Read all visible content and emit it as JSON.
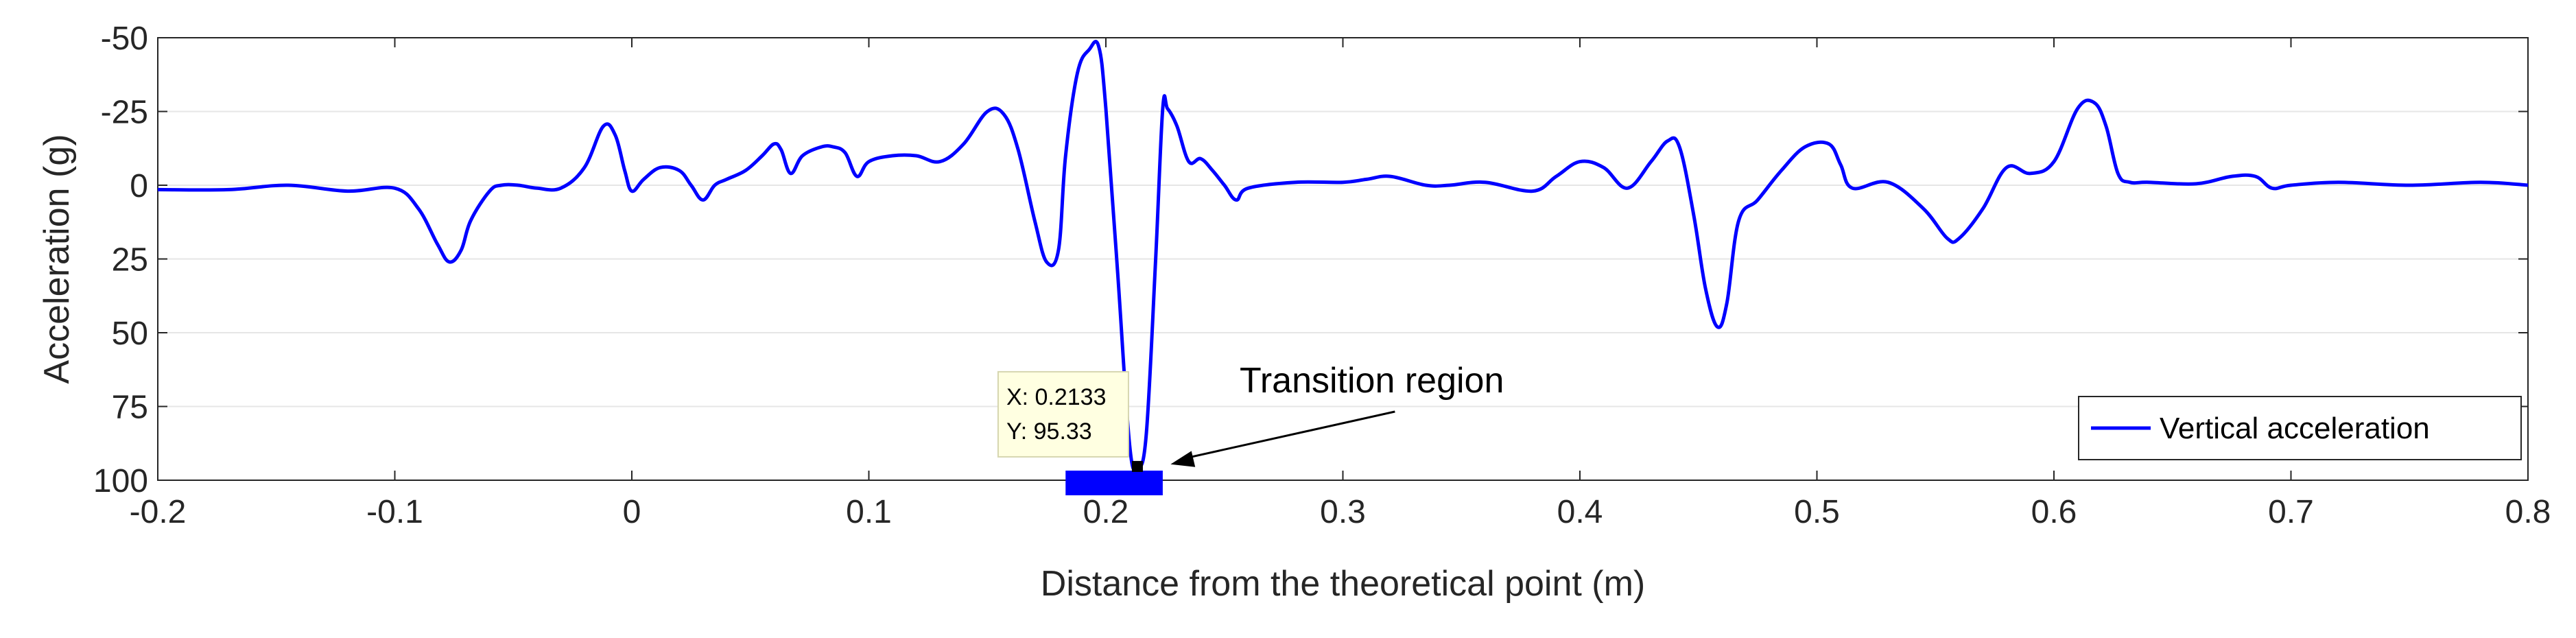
{
  "chart_data": {
    "type": "line",
    "xlabel": "Distance from the theoretical point (m)",
    "ylabel": "Acceleration (g)",
    "xlim": [
      -0.2,
      0.8
    ],
    "ylim": [
      -50,
      100
    ],
    "y_axis_reversed": true,
    "x_ticks": [
      -0.2,
      -0.1,
      0,
      0.1,
      0.2,
      0.3,
      0.4,
      0.5,
      0.6,
      0.7,
      0.8
    ],
    "x_tick_labels": [
      "-0.2",
      "-0.1",
      "0",
      "0.1",
      "0.2",
      "0.3",
      "0.4",
      "0.5",
      "0.6",
      "0.7",
      "0.8"
    ],
    "y_ticks": [
      -50,
      -25,
      0,
      25,
      50,
      75,
      100
    ],
    "y_tick_labels": [
      "-50",
      "-25",
      "0",
      "25",
      "50",
      "75",
      "100"
    ],
    "grid": "horizontal",
    "legend_position": "bottom-right",
    "series": [
      {
        "name": "Vertical acceleration",
        "color": "#0000ff",
        "x": [
          -0.2,
          -0.17,
          -0.145,
          -0.12,
          -0.1,
          -0.09,
          -0.082,
          -0.077,
          -0.072,
          -0.068,
          -0.06,
          -0.055,
          -0.048,
          -0.04,
          -0.03,
          -0.02,
          -0.012,
          -0.007,
          -0.003,
          0,
          0.005,
          0.012,
          0.02,
          0.025,
          0.03,
          0.035,
          0.04,
          0.048,
          0.055,
          0.06,
          0.063,
          0.067,
          0.072,
          0.08,
          0.085,
          0.09,
          0.095,
          0.1,
          0.11,
          0.12,
          0.13,
          0.14,
          0.15,
          0.157,
          0.163,
          0.17,
          0.175,
          0.18,
          0.183,
          0.188,
          0.193,
          0.197,
          0.2,
          0.205,
          0.21,
          0.2133,
          0.217,
          0.221,
          0.224,
          0.226,
          0.23,
          0.235,
          0.24,
          0.245,
          0.25,
          0.255,
          0.26,
          0.28,
          0.3,
          0.31,
          0.32,
          0.335,
          0.345,
          0.36,
          0.38,
          0.39,
          0.4,
          0.41,
          0.42,
          0.43,
          0.437,
          0.442,
          0.448,
          0.453,
          0.458,
          0.462,
          0.467,
          0.475,
          0.485,
          0.495,
          0.505,
          0.51,
          0.515,
          0.53,
          0.545,
          0.555,
          0.56,
          0.57,
          0.58,
          0.59,
          0.6,
          0.61,
          0.617,
          0.622,
          0.627,
          0.632,
          0.64,
          0.66,
          0.675,
          0.685,
          0.692,
          0.7,
          0.72,
          0.75,
          0.78,
          0.8
        ],
        "y": [
          1.5,
          1.5,
          0,
          2,
          1,
          8,
          20,
          26,
          22,
          12,
          2,
          0,
          0,
          1,
          1,
          -6,
          -20,
          -17,
          -5,
          2,
          -2,
          -6,
          -5,
          0,
          5,
          0,
          -2,
          -5,
          -10,
          -14,
          -12,
          -4,
          -10,
          -13,
          -13,
          -11,
          -3,
          -8,
          -10,
          -10,
          -8,
          -14,
          -25,
          -24,
          -12,
          12,
          26,
          22,
          -10,
          -38,
          -46,
          -47,
          -26,
          30,
          88,
          95.33,
          85,
          25,
          -26,
          -26,
          -20,
          -8,
          -9,
          -5,
          0,
          5,
          1,
          -1,
          -1,
          -2,
          -3,
          0,
          0,
          -1,
          2,
          -3,
          -8,
          -6,
          1,
          -8,
          -15,
          -13,
          10,
          35,
          48,
          40,
          12,
          5,
          -5,
          -13,
          -14,
          -7,
          1,
          -1,
          8,
          18,
          18,
          8,
          -6,
          -4,
          -8,
          -26,
          -28,
          -20,
          -4,
          -1,
          -1,
          -0.5,
          -3,
          -3,
          1,
          0,
          -1,
          0,
          -1,
          0
        ]
      }
    ],
    "annotations": [
      {
        "type": "datatip",
        "lines": [
          "X: 0.2133",
          "Y: 95.33"
        ],
        "point": {
          "x": 0.2133,
          "y": 95.33
        }
      },
      {
        "type": "arrow-label",
        "text": "Transition region",
        "target": {
          "x": 0.225,
          "y": 96
        }
      },
      {
        "type": "range-bar",
        "color": "#0000ff",
        "x_start": 0.183,
        "x_end": 0.224
      }
    ]
  }
}
